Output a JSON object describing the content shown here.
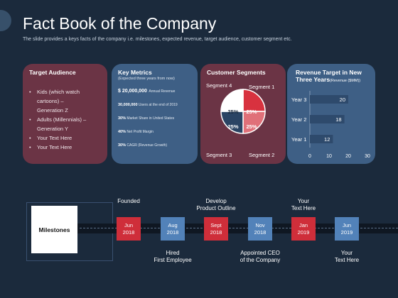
{
  "slide": {
    "title": "Fact Book of the Company",
    "subtitle": "The slide provides  a keys facts of the company i.e. milestones, expected revenue,  target audience, customer segment etc."
  },
  "target_audience": {
    "title": "Target Audience",
    "lines": [
      "Kids (which watch",
      "cartoons) –",
      "Generation Z",
      "Adults (Millennials) –",
      "Generation Y",
      "Your Text Here",
      "Your Text Here"
    ]
  },
  "key_metrics": {
    "title": "Key Metrics",
    "subtitle": "(Expected three years from now)",
    "rows": [
      {
        "value": "$ 20,000,000",
        "label": "Annual Revenue"
      },
      {
        "value": "30,000,000",
        "label": "Users at the end of 2019"
      },
      {
        "value": "30%",
        "label": "Market Share in United States"
      },
      {
        "value": "40%",
        "label": "Net Profit Margin"
      },
      {
        "value": "30%",
        "label": "CAGR (Revenue Growth)"
      }
    ]
  },
  "customer_segments": {
    "title": "Customer Segments",
    "segments": [
      {
        "name": "Segment 1",
        "percent": "25%",
        "color": "#d8323f"
      },
      {
        "name": "Segment 2",
        "percent": "25%",
        "color": "#e07079"
      },
      {
        "name": "Segment 3",
        "percent": "25%",
        "color": "#2a4464"
      },
      {
        "name": "Segment 4",
        "percent": "25%",
        "color": "#ffffff"
      }
    ]
  },
  "revenue_target": {
    "title": "Revenue Target in New Three Years",
    "unit": "(Revenue ($MM))"
  },
  "chart_data": {
    "type": "bar",
    "orientation": "horizontal",
    "categories": [
      "Year 3",
      "Year 2",
      "Year 1"
    ],
    "values": [
      20,
      18,
      12
    ],
    "xlim": [
      0,
      30
    ],
    "xticks": [
      "0",
      "10",
      "20",
      "30"
    ],
    "bar_color": "#2e4a6c"
  },
  "timeline": {
    "label": "Milestones",
    "events": [
      {
        "date_line1": "Jun",
        "date_line2": "2018",
        "caption": "Founded",
        "position": "above",
        "color": "#cf2e3a"
      },
      {
        "date_line1": "Aug",
        "date_line2": "2018",
        "caption": "Hired First Employee",
        "position": "below",
        "color": "#5282b9"
      },
      {
        "date_line1": "Sept",
        "date_line2": "2018",
        "caption": "Develop Product Outline",
        "position": "above",
        "color": "#cf2e3a"
      },
      {
        "date_line1": "Nov",
        "date_line2": "2018",
        "caption": "Appointed CEO of the Company",
        "position": "below",
        "color": "#5282b9"
      },
      {
        "date_line1": "Jan",
        "date_line2": "2019",
        "caption": "Your Text Here",
        "position": "above",
        "color": "#cf2e3a"
      },
      {
        "date_line1": "Jun",
        "date_line2": "2019",
        "caption": "Your Text Here",
        "position": "below",
        "color": "#5282b9"
      }
    ]
  }
}
